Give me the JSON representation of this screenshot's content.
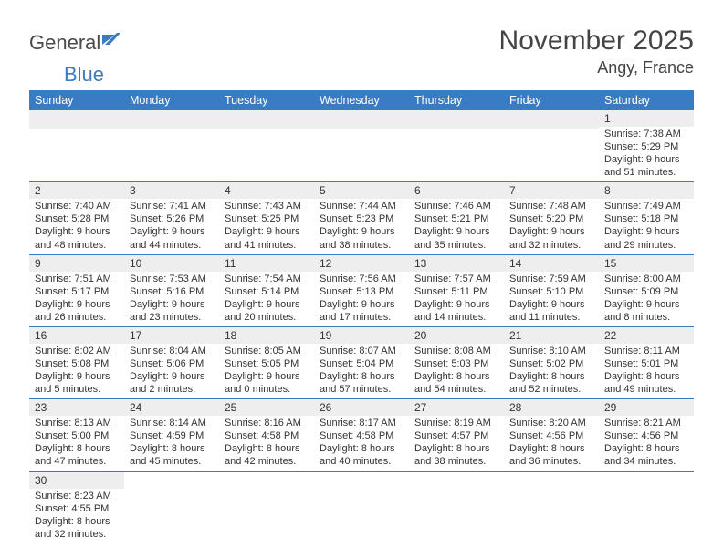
{
  "logo": {
    "text_a": "General",
    "text_b": "Blue"
  },
  "title": "November 2025",
  "location": "Angy, France",
  "colors": {
    "accent": "#3a7cc4",
    "header_text": "#444",
    "grey_row": "#eeeeee"
  },
  "day_headers": [
    "Sunday",
    "Monday",
    "Tuesday",
    "Wednesday",
    "Thursday",
    "Friday",
    "Saturday"
  ],
  "weeks": [
    [
      null,
      null,
      null,
      null,
      null,
      null,
      {
        "d": "1",
        "sr": "7:38 AM",
        "ss": "5:29 PM",
        "dl": "9 hours and 51 minutes."
      }
    ],
    [
      {
        "d": "2",
        "sr": "7:40 AM",
        "ss": "5:28 PM",
        "dl": "9 hours and 48 minutes."
      },
      {
        "d": "3",
        "sr": "7:41 AM",
        "ss": "5:26 PM",
        "dl": "9 hours and 44 minutes."
      },
      {
        "d": "4",
        "sr": "7:43 AM",
        "ss": "5:25 PM",
        "dl": "9 hours and 41 minutes."
      },
      {
        "d": "5",
        "sr": "7:44 AM",
        "ss": "5:23 PM",
        "dl": "9 hours and 38 minutes."
      },
      {
        "d": "6",
        "sr": "7:46 AM",
        "ss": "5:21 PM",
        "dl": "9 hours and 35 minutes."
      },
      {
        "d": "7",
        "sr": "7:48 AM",
        "ss": "5:20 PM",
        "dl": "9 hours and 32 minutes."
      },
      {
        "d": "8",
        "sr": "7:49 AM",
        "ss": "5:18 PM",
        "dl": "9 hours and 29 minutes."
      }
    ],
    [
      {
        "d": "9",
        "sr": "7:51 AM",
        "ss": "5:17 PM",
        "dl": "9 hours and 26 minutes."
      },
      {
        "d": "10",
        "sr": "7:53 AM",
        "ss": "5:16 PM",
        "dl": "9 hours and 23 minutes."
      },
      {
        "d": "11",
        "sr": "7:54 AM",
        "ss": "5:14 PM",
        "dl": "9 hours and 20 minutes."
      },
      {
        "d": "12",
        "sr": "7:56 AM",
        "ss": "5:13 PM",
        "dl": "9 hours and 17 minutes."
      },
      {
        "d": "13",
        "sr": "7:57 AM",
        "ss": "5:11 PM",
        "dl": "9 hours and 14 minutes."
      },
      {
        "d": "14",
        "sr": "7:59 AM",
        "ss": "5:10 PM",
        "dl": "9 hours and 11 minutes."
      },
      {
        "d": "15",
        "sr": "8:00 AM",
        "ss": "5:09 PM",
        "dl": "9 hours and 8 minutes."
      }
    ],
    [
      {
        "d": "16",
        "sr": "8:02 AM",
        "ss": "5:08 PM",
        "dl": "9 hours and 5 minutes."
      },
      {
        "d": "17",
        "sr": "8:04 AM",
        "ss": "5:06 PM",
        "dl": "9 hours and 2 minutes."
      },
      {
        "d": "18",
        "sr": "8:05 AM",
        "ss": "5:05 PM",
        "dl": "9 hours and 0 minutes."
      },
      {
        "d": "19",
        "sr": "8:07 AM",
        "ss": "5:04 PM",
        "dl": "8 hours and 57 minutes."
      },
      {
        "d": "20",
        "sr": "8:08 AM",
        "ss": "5:03 PM",
        "dl": "8 hours and 54 minutes."
      },
      {
        "d": "21",
        "sr": "8:10 AM",
        "ss": "5:02 PM",
        "dl": "8 hours and 52 minutes."
      },
      {
        "d": "22",
        "sr": "8:11 AM",
        "ss": "5:01 PM",
        "dl": "8 hours and 49 minutes."
      }
    ],
    [
      {
        "d": "23",
        "sr": "8:13 AM",
        "ss": "5:00 PM",
        "dl": "8 hours and 47 minutes."
      },
      {
        "d": "24",
        "sr": "8:14 AM",
        "ss": "4:59 PM",
        "dl": "8 hours and 45 minutes."
      },
      {
        "d": "25",
        "sr": "8:16 AM",
        "ss": "4:58 PM",
        "dl": "8 hours and 42 minutes."
      },
      {
        "d": "26",
        "sr": "8:17 AM",
        "ss": "4:58 PM",
        "dl": "8 hours and 40 minutes."
      },
      {
        "d": "27",
        "sr": "8:19 AM",
        "ss": "4:57 PM",
        "dl": "8 hours and 38 minutes."
      },
      {
        "d": "28",
        "sr": "8:20 AM",
        "ss": "4:56 PM",
        "dl": "8 hours and 36 minutes."
      },
      {
        "d": "29",
        "sr": "8:21 AM",
        "ss": "4:56 PM",
        "dl": "8 hours and 34 minutes."
      }
    ],
    [
      {
        "d": "30",
        "sr": "8:23 AM",
        "ss": "4:55 PM",
        "dl": "8 hours and 32 minutes."
      },
      null,
      null,
      null,
      null,
      null,
      null
    ]
  ],
  "labels": {
    "sunrise": "Sunrise: ",
    "sunset": "Sunset: ",
    "daylight": "Daylight: "
  }
}
